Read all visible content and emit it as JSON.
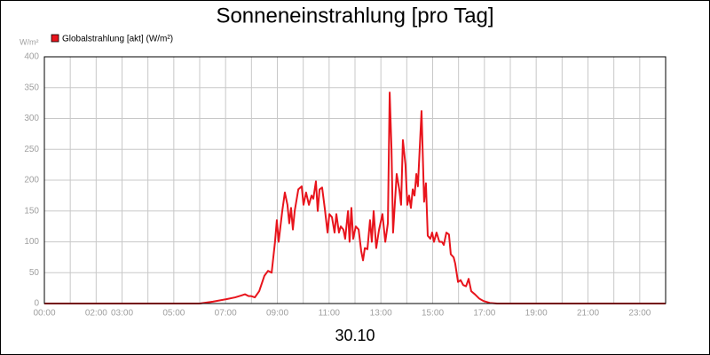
{
  "chart_data": {
    "type": "line",
    "title": "Sonneneinstrahlung [pro Tag]",
    "y_label": "W/m²",
    "x_label": "30.10",
    "series": [
      {
        "name": "Globalstrahlung [akt] (W/m²)",
        "color": "#e8141c",
        "x": [
          0,
          6.0,
          6.51,
          7.03,
          7.37,
          7.61,
          7.75,
          7.89,
          7.99,
          8.13,
          8.3,
          8.5,
          8.64,
          8.78,
          8.91,
          8.98,
          9.05,
          9.19,
          9.29,
          9.39,
          9.46,
          9.53,
          9.6,
          9.67,
          9.81,
          9.94,
          10.01,
          10.11,
          10.22,
          10.32,
          10.39,
          10.49,
          10.56,
          10.63,
          10.73,
          10.83,
          10.94,
          11.01,
          11.11,
          11.21,
          11.28,
          11.38,
          11.45,
          11.55,
          11.62,
          11.73,
          11.79,
          11.86,
          11.93,
          12.03,
          12.14,
          12.24,
          12.31,
          12.38,
          12.48,
          12.58,
          12.65,
          12.72,
          12.82,
          12.93,
          13.06,
          13.17,
          13.27,
          13.34,
          13.41,
          13.47,
          13.61,
          13.71,
          13.78,
          13.85,
          13.95,
          14.02,
          14.09,
          14.16,
          14.23,
          14.3,
          14.37,
          14.43,
          14.57,
          14.67,
          14.74,
          14.81,
          14.91,
          14.98,
          15.05,
          15.15,
          15.26,
          15.36,
          15.43,
          15.53,
          15.63,
          15.7,
          15.81,
          15.87,
          15.98,
          16.08,
          16.18,
          16.29,
          16.39,
          16.49,
          16.63,
          16.8,
          16.97,
          17.21,
          17.49,
          24.0
        ],
        "values": [
          0,
          0,
          3,
          7,
          10,
          13,
          15,
          12,
          12,
          10,
          20,
          45,
          53,
          50,
          100,
          135,
          100,
          150,
          180,
          160,
          130,
          155,
          120,
          150,
          185,
          190,
          160,
          180,
          160,
          175,
          170,
          198,
          150,
          185,
          188,
          155,
          115,
          145,
          140,
          115,
          145,
          115,
          125,
          120,
          105,
          150,
          100,
          155,
          105,
          125,
          120,
          85,
          70,
          90,
          88,
          135,
          100,
          150,
          90,
          120,
          145,
          100,
          130,
          342,
          250,
          115,
          210,
          185,
          160,
          265,
          225,
          160,
          175,
          155,
          185,
          175,
          210,
          190,
          312,
          165,
          195,
          110,
          105,
          115,
          100,
          115,
          100,
          100,
          95,
          115,
          112,
          80,
          75,
          65,
          35,
          38,
          30,
          28,
          40,
          20,
          15,
          8,
          4,
          1,
          0,
          0
        ]
      }
    ],
    "xlim": [
      0,
      24
    ],
    "xticks": [
      {
        "value": 0,
        "label": "00:00"
      },
      {
        "value": 2,
        "label": "02:00"
      },
      {
        "value": 3,
        "label": "03:00"
      },
      {
        "value": 5,
        "label": "05:00"
      },
      {
        "value": 7,
        "label": "07:00"
      },
      {
        "value": 9,
        "label": "09:00"
      },
      {
        "value": 11,
        "label": "11:00"
      },
      {
        "value": 13,
        "label": "13:00"
      },
      {
        "value": 15,
        "label": "15:00"
      },
      {
        "value": 17,
        "label": "17:00"
      },
      {
        "value": 19,
        "label": "19:00"
      },
      {
        "value": 21,
        "label": "21:00"
      },
      {
        "value": 23,
        "label": "23:00"
      }
    ],
    "minor_xticks": [
      1,
      4,
      6,
      8,
      10,
      12,
      14,
      16,
      18,
      20,
      22
    ],
    "ylim": [
      0,
      400
    ],
    "yticks": [
      0,
      50,
      100,
      150,
      200,
      250,
      300,
      350,
      400
    ],
    "grid": true
  }
}
